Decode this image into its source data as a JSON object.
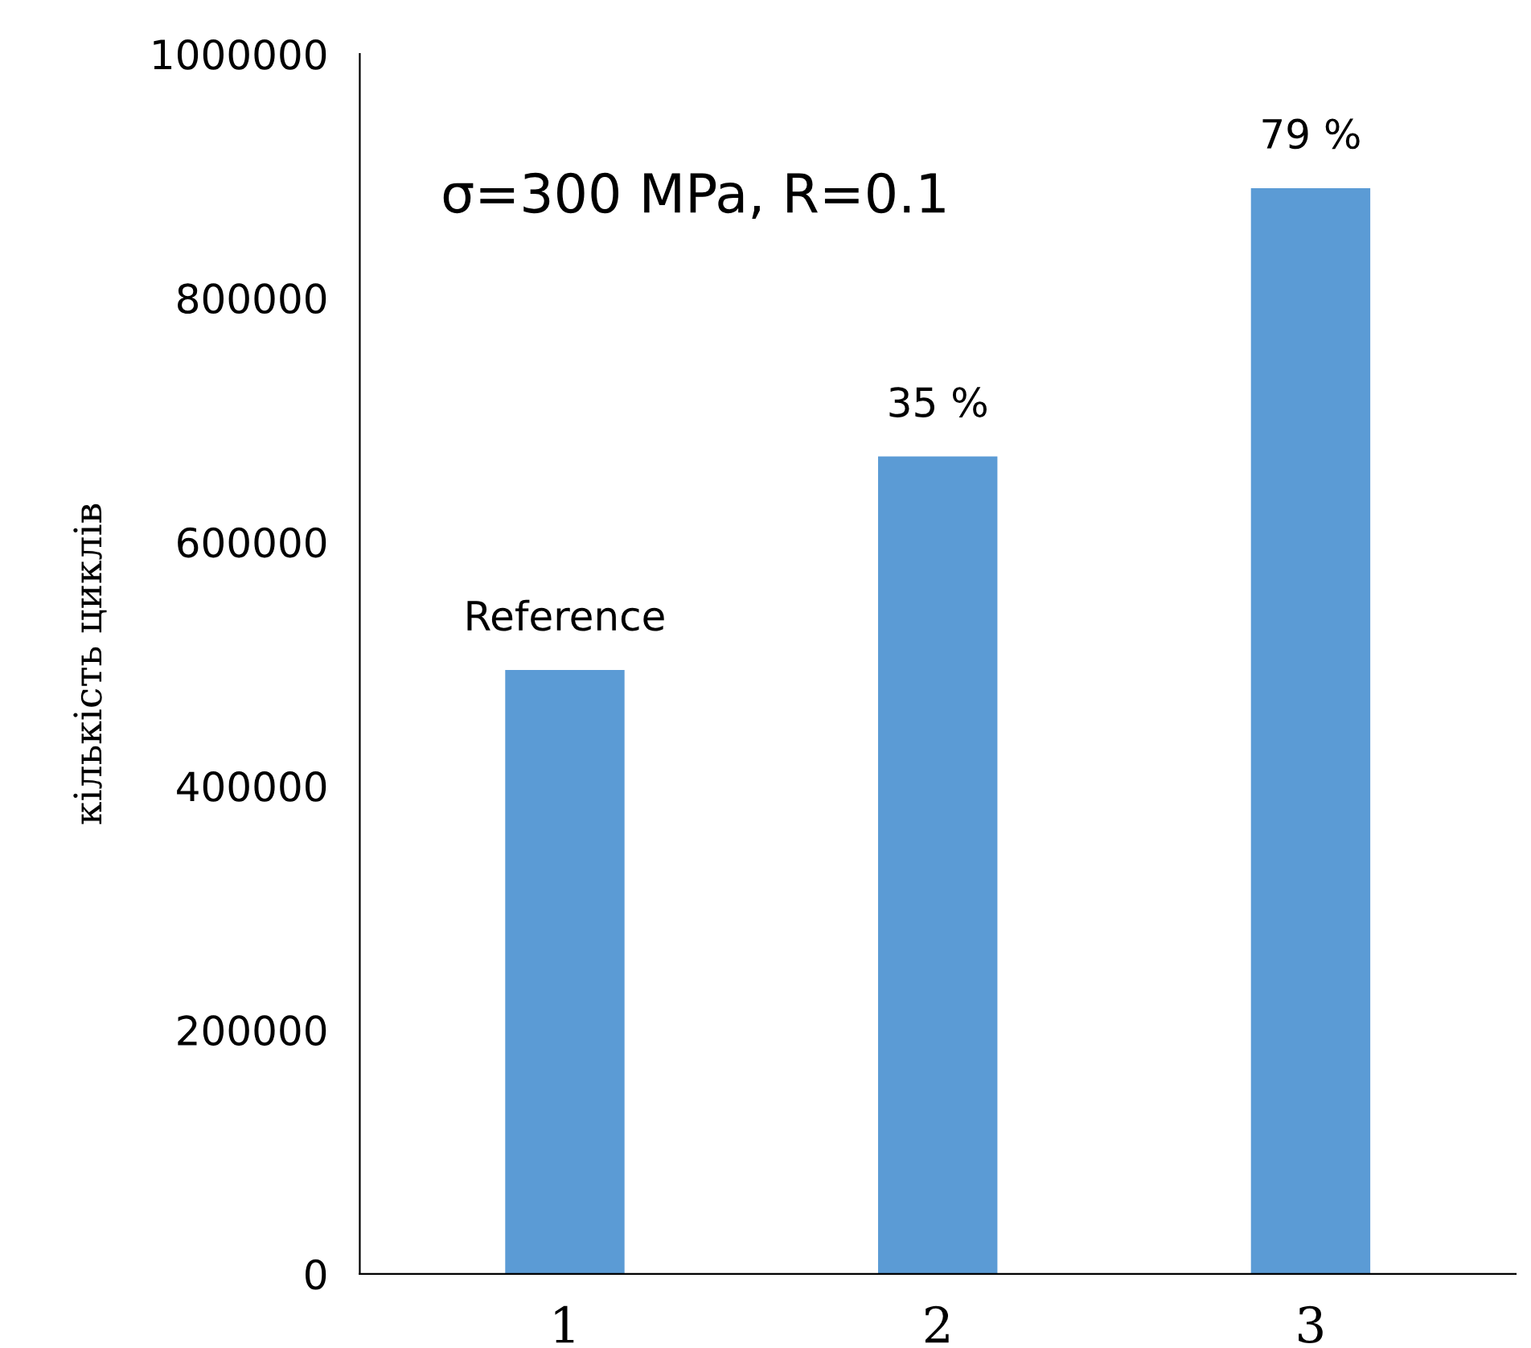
{
  "chart_data": {
    "type": "bar",
    "ylabel": "кількість циклів",
    "categories": [
      "1",
      "2",
      "3"
    ],
    "values": [
      495000,
      670000,
      890000
    ],
    "color": "#5b9bd5",
    "annotations": [
      "σ=300 MPa, R=0.1",
      {
        "text": "Reference",
        "x": "1",
        "y": 495000
      },
      {
        "text": "35 %",
        "x": "2",
        "y": 670000
      },
      {
        "text": "79 %",
        "x": "3",
        "y": 890000
      }
    ],
    "ylim": [
      0,
      1000000
    ],
    "yticks": [
      0,
      200000,
      400000,
      600000,
      800000,
      1000000
    ],
    "grid": false
  }
}
